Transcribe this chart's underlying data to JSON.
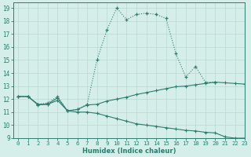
{
  "xlabel": "Humidex (Indice chaleur)",
  "xlim": [
    -0.5,
    23
  ],
  "ylim": [
    9,
    19.4
  ],
  "yticks": [
    9,
    10,
    11,
    12,
    13,
    14,
    15,
    16,
    17,
    18,
    19
  ],
  "xticks": [
    0,
    1,
    2,
    3,
    4,
    5,
    6,
    7,
    8,
    9,
    10,
    11,
    12,
    13,
    14,
    15,
    16,
    17,
    18,
    19,
    20,
    21,
    22,
    23
  ],
  "bg_color": "#d6eeea",
  "grid_color": "#b8d8d2",
  "line_color": "#2d7d6f",
  "line1_x": [
    0,
    1,
    2,
    3,
    4,
    5,
    6,
    7,
    8,
    9,
    10,
    11,
    12,
    13,
    14,
    15,
    16,
    17,
    18,
    19,
    20
  ],
  "line1_y": [
    12.2,
    12.2,
    11.6,
    11.7,
    12.2,
    11.1,
    11.2,
    11.6,
    15.0,
    17.3,
    19.0,
    18.1,
    18.5,
    18.6,
    18.5,
    18.2,
    15.5,
    13.7,
    14.5,
    13.3,
    13.3
  ],
  "line2_x": [
    0,
    1,
    2,
    3,
    4,
    5,
    6,
    7,
    8,
    9,
    10,
    11,
    12,
    13,
    14,
    15,
    16,
    17,
    18,
    19,
    20,
    21,
    22,
    23
  ],
  "line2_y": [
    12.2,
    12.2,
    11.6,
    11.6,
    12.1,
    11.1,
    11.2,
    11.55,
    11.6,
    11.85,
    12.0,
    12.15,
    12.35,
    12.5,
    12.65,
    12.8,
    12.95,
    13.0,
    13.1,
    13.2,
    13.3,
    13.25,
    13.2,
    13.15
  ],
  "line3_x": [
    0,
    1,
    2,
    3,
    4,
    5,
    6,
    7,
    8,
    9,
    10,
    11,
    12,
    13,
    14,
    15,
    16,
    17,
    18,
    19,
    20,
    21,
    22,
    23
  ],
  "line3_y": [
    12.2,
    12.2,
    11.55,
    11.6,
    11.9,
    11.1,
    11.0,
    11.0,
    10.9,
    10.7,
    10.5,
    10.3,
    10.1,
    10.0,
    9.9,
    9.8,
    9.7,
    9.6,
    9.55,
    9.45,
    9.4,
    9.1,
    9.0,
    9.0
  ]
}
